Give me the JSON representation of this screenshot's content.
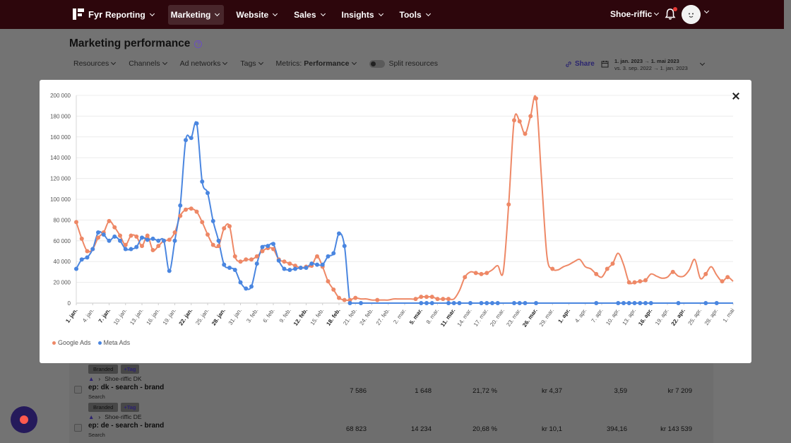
{
  "nav": {
    "logo_text": "Fyr",
    "items": [
      {
        "label": "Reporting",
        "active": false
      },
      {
        "label": "Marketing",
        "active": true
      },
      {
        "label": "Website",
        "active": false
      },
      {
        "label": "Sales",
        "active": false
      },
      {
        "label": "Insights",
        "active": false
      },
      {
        "label": "Tools",
        "active": false
      }
    ],
    "account": "Shoe-riffic"
  },
  "page": {
    "title": "Marketing performance",
    "help": "?"
  },
  "filters": {
    "resources": "Resources",
    "channels": "Channels",
    "ad_networks": "Ad networks",
    "tags": "Tags",
    "metrics_label": "Metrics:",
    "metrics_value": "Performance",
    "split": "Split resources",
    "share": "Share",
    "date_primary_from": "1. jan. 2023",
    "date_primary_to": "1. mai 2023",
    "date_compare_prefix": "vs.",
    "date_compare_from": "3. sep. 2022",
    "date_compare_to": "1. jan. 2023"
  },
  "table": {
    "rows": [
      {
        "tag": "Branded",
        "tag_add": "+Tag",
        "account": "Shoe-riffic DK",
        "name": "ep: dk - search - brand",
        "type": "Search",
        "cells": [
          "7 586",
          "1 648",
          "21,72 %",
          "kr 4,37",
          "3,59",
          "kr 7 209"
        ]
      },
      {
        "tag": "Branded",
        "tag_add": "+Tag",
        "account": "Shoe-riffic DE",
        "name": "ep: de - search - brand",
        "type": "Search",
        "cells": [
          "68 823",
          "14 234",
          "20,68 %",
          "kr 10,1",
          "394,16",
          "kr 143 539"
        ]
      }
    ]
  },
  "colors": {
    "nav_bg": "#2d060c",
    "google": "#ee8866",
    "meta": "#4a86e0"
  },
  "chart_data": {
    "type": "line",
    "title": "",
    "xlabel": "",
    "ylabel": "",
    "ylim": [
      0,
      200000
    ],
    "yticks": [
      "0",
      "20 000",
      "40 000",
      "60 000",
      "80 000",
      "100 000",
      "120 000",
      "140 000",
      "160 000",
      "180 000",
      "200 000"
    ],
    "legend_position": "bottom-left",
    "grid": true,
    "x": [
      "1. jan.",
      "2. jan.",
      "3. jan.",
      "4. jan.",
      "5. jan.",
      "6. jan.",
      "7. jan.",
      "8. jan.",
      "9. jan.",
      "10. jan.",
      "11. jan.",
      "12. jan.",
      "13. jan.",
      "14. jan.",
      "15. jan.",
      "16. jan.",
      "17. jan.",
      "18. jan.",
      "19. jan.",
      "20. jan.",
      "21. jan.",
      "22. jan.",
      "23. jan.",
      "24. jan.",
      "25. jan.",
      "26. jan.",
      "27. jan.",
      "28. jan.",
      "29. jan.",
      "30. jan.",
      "31. jan.",
      "1. feb.",
      "2. feb.",
      "3. feb.",
      "4. feb.",
      "5. feb.",
      "6. feb.",
      "7. feb.",
      "8. feb.",
      "9. feb.",
      "10. feb.",
      "11. feb.",
      "12. feb.",
      "13. feb.",
      "14. feb.",
      "15. feb.",
      "16. feb.",
      "17. feb.",
      "18. feb.",
      "19. feb.",
      "20. feb.",
      "21. feb.",
      "22. feb.",
      "23. feb.",
      "24. feb.",
      "25. feb.",
      "26. feb.",
      "27. feb.",
      "28. feb.",
      "1. mar.",
      "2. mar.",
      "3. mar.",
      "4. mar.",
      "5. mar.",
      "6. mar.",
      "7. mar.",
      "8. mar.",
      "9. mar.",
      "10. mar.",
      "11. mar.",
      "12. mar.",
      "13. mar.",
      "14. mar.",
      "15. mar.",
      "16. mar.",
      "17. mar.",
      "18. mar.",
      "19. mar.",
      "20. mar.",
      "21. mar.",
      "22. mar.",
      "23. mar.",
      "24. mar.",
      "25. mar.",
      "26. mar.",
      "27. mar.",
      "28. mar.",
      "29. mar.",
      "30. mar.",
      "31. mar.",
      "1. apr.",
      "2. apr.",
      "3. apr.",
      "4. apr.",
      "5. apr.",
      "6. apr.",
      "7. apr.",
      "8. apr.",
      "9. apr.",
      "10. apr.",
      "11. apr.",
      "12. apr.",
      "13. apr.",
      "14. apr.",
      "15. apr.",
      "16. apr.",
      "17. apr.",
      "18. apr.",
      "19. apr.",
      "20. apr.",
      "21. apr.",
      "22. apr.",
      "23. apr.",
      "24. apr.",
      "25. apr.",
      "26. apr.",
      "27. apr.",
      "28. apr.",
      "29. apr.",
      "30. apr.",
      "1. mai"
    ],
    "xtick_labels": [
      "1. jan.",
      "4. jan.",
      "7. jan.",
      "10. jan.",
      "13. jan.",
      "16. jan.",
      "19. jan.",
      "22. jan.",
      "25. jan.",
      "28. jan.",
      "31. jan.",
      "3. feb.",
      "6. feb.",
      "9. feb.",
      "12. feb.",
      "15. feb.",
      "18. feb.",
      "21. feb.",
      "24. feb.",
      "27. feb.",
      "2. mar.",
      "5. mar.",
      "8. mar.",
      "11. mar.",
      "14. mar.",
      "17. mar.",
      "20. mar.",
      "23. mar.",
      "26. mar.",
      "29. mar.",
      "1. apr.",
      "4. apr.",
      "7. apr.",
      "10. apr.",
      "13. apr.",
      "16. apr.",
      "19. apr.",
      "22. apr.",
      "25. apr.",
      "28. apr.",
      "1. mai"
    ],
    "xtick_bold": [
      "1. jan.",
      "7. jan.",
      "22. jan.",
      "28. jan.",
      "12. feb.",
      "18. feb.",
      "5. mar.",
      "11. mar.",
      "26. mar.",
      "1. apr.",
      "16. apr.",
      "22. apr."
    ],
    "series": [
      {
        "name": "Google Ads",
        "values": [
          78000,
          62000,
          50000,
          52000,
          63000,
          68000,
          79000,
          73000,
          65000,
          56000,
          65000,
          64000,
          55000,
          65000,
          51000,
          55000,
          60000,
          61000,
          68000,
          84000,
          90000,
          91000,
          88000,
          78000,
          66000,
          56000,
          55000,
          72000,
          74000,
          45000,
          40000,
          42000,
          42000,
          45000,
          50000,
          53000,
          52000,
          42000,
          40000,
          38000,
          36000,
          34000,
          35000,
          36000,
          45000,
          35000,
          21000,
          13000,
          5000,
          3000,
          3000,
          5000,
          4000,
          4000,
          3000,
          3000,
          3000,
          3000,
          4000,
          4000,
          4000,
          4000,
          4000,
          6000,
          6000,
          6000,
          4000,
          4000,
          4000,
          4000,
          12000,
          25000,
          30000,
          29000,
          28000,
          29000,
          32000,
          36000,
          30000,
          95000,
          176000,
          175000,
          163000,
          180000,
          197000,
          120000,
          45000,
          33000,
          32000,
          35000,
          37000,
          40000,
          42000,
          35000,
          33000,
          28000,
          25000,
          33000,
          38000,
          48000,
          37000,
          20000,
          20000,
          21000,
          22000,
          28000,
          26000,
          24000,
          25000,
          30000,
          26000,
          26000,
          32000,
          42000,
          24000,
          28000,
          35000,
          27000,
          21000,
          25000,
          21000
        ],
        "dots": [
          0,
          1,
          2,
          3,
          4,
          5,
          6,
          7,
          8,
          9,
          10,
          11,
          12,
          13,
          14,
          15,
          16,
          17,
          18,
          19,
          20,
          21,
          22,
          23,
          24,
          25,
          26,
          27,
          28,
          29,
          30,
          31,
          32,
          33,
          34,
          35,
          36,
          37,
          38,
          39,
          40,
          41,
          42,
          43,
          44,
          45,
          46,
          47,
          48,
          49,
          50,
          51,
          55,
          62,
          63,
          64,
          65,
          66,
          67,
          68,
          71,
          73,
          74,
          75,
          79,
          80,
          81,
          82,
          83,
          84,
          87,
          95,
          97,
          98,
          101,
          102,
          103,
          104,
          109,
          115,
          118,
          119
        ]
      },
      {
        "name": "Meta Ads",
        "values": [
          33000,
          42000,
          44000,
          52000,
          68000,
          66000,
          60000,
          64000,
          60000,
          52000,
          52000,
          54000,
          63000,
          61000,
          62000,
          60000,
          60000,
          31000,
          60000,
          94000,
          157000,
          159000,
          173000,
          117000,
          106000,
          79000,
          60000,
          37000,
          34000,
          32000,
          20000,
          14000,
          16000,
          38000,
          54000,
          55000,
          57000,
          41000,
          33000,
          32000,
          33000,
          34000,
          34000,
          38000,
          37000,
          37000,
          45000,
          48000,
          67000,
          55000,
          0,
          0,
          0,
          0,
          0,
          0,
          0,
          0,
          0,
          0,
          0,
          0,
          0,
          0,
          0,
          0,
          0,
          0,
          0,
          0,
          0,
          0,
          0,
          0,
          0,
          0,
          0,
          0,
          0,
          0,
          0,
          0,
          0,
          0,
          0,
          0,
          0,
          0,
          0,
          0,
          0,
          0,
          0,
          0,
          0,
          0,
          0,
          0,
          0,
          0,
          0,
          0,
          0,
          0,
          0,
          0,
          0,
          0,
          0,
          0,
          0,
          0,
          0,
          0,
          0,
          0,
          0,
          0,
          0,
          0,
          0
        ],
        "dots": [
          0,
          1,
          2,
          3,
          4,
          5,
          6,
          7,
          8,
          9,
          10,
          11,
          12,
          13,
          14,
          15,
          16,
          17,
          18,
          19,
          20,
          21,
          22,
          23,
          24,
          25,
          26,
          27,
          28,
          29,
          30,
          31,
          32,
          33,
          34,
          35,
          36,
          37,
          38,
          39,
          40,
          41,
          42,
          43,
          44,
          45,
          46,
          47,
          48,
          49,
          50,
          52,
          63,
          64,
          65,
          68,
          69,
          70,
          72,
          74,
          75,
          76,
          77,
          80,
          81,
          82,
          84,
          95,
          99,
          100,
          101,
          102,
          103,
          104,
          105,
          110,
          115,
          117
        ]
      }
    ]
  }
}
